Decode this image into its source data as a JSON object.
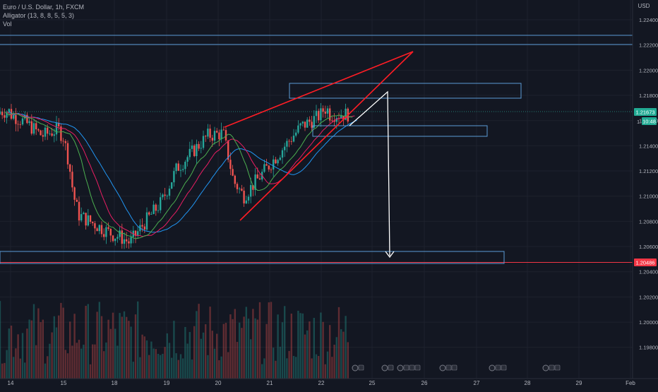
{
  "legend": {
    "symbol": "Euro / U.S. Dollar, 1h, FXCM",
    "indicator": "Alligator (13, 8, 8, 5, 5, 3)",
    "volume": "Vol"
  },
  "price_scale": {
    "currency": "USD",
    "current_price": "1.21673",
    "countdown": "10:48",
    "countdown_prefix": "1.",
    "support_price": "1.20486"
  },
  "colors": {
    "background": "#131722",
    "grid": "#1e222d",
    "bull": "#26a69a",
    "bear": "#ef5350",
    "jaw": "#2196f3",
    "teeth": "#e91e63",
    "lips": "#4caf50",
    "drawing_red": "#ff1d25",
    "box": "#5b9bd5",
    "arrow": "#ffffff"
  },
  "chart_data": {
    "type": "candlestick",
    "xlabel": "",
    "ylabel": "",
    "ylim": [
      1.1972,
      1.2262
    ],
    "price_ticks": [
      "1.22400",
      "1.22200",
      "1.22000",
      "1.21800",
      "1.21600",
      "1.21400",
      "1.21200",
      "1.21000",
      "1.20800",
      "1.20600",
      "1.20400",
      "1.20200",
      "1.20000",
      "1.19800"
    ],
    "time_ticks": [
      "14",
      "15",
      "18",
      "19",
      "20",
      "21",
      "22",
      "25",
      "26",
      "27",
      "28",
      "29",
      "Feb"
    ],
    "price_path_hint": [
      [
        14.0,
        1.2165
      ],
      [
        14.3,
        1.2158
      ],
      [
        14.6,
        1.2148
      ],
      [
        14.9,
        1.2153
      ],
      [
        15.3,
        1.2128
      ],
      [
        15.6,
        1.21
      ],
      [
        15.9,
        1.2085
      ],
      [
        18.1,
        1.2068
      ],
      [
        18.3,
        1.2063
      ],
      [
        18.6,
        1.208
      ],
      [
        18.9,
        1.2095
      ],
      [
        19.2,
        1.2122
      ],
      [
        19.5,
        1.2135
      ],
      [
        19.8,
        1.2148
      ],
      [
        20.1,
        1.215
      ],
      [
        20.3,
        1.2112
      ],
      [
        20.5,
        1.21
      ],
      [
        20.8,
        1.2115
      ],
      [
        21.0,
        1.2125
      ],
      [
        21.3,
        1.214
      ],
      [
        21.6,
        1.2155
      ],
      [
        21.9,
        1.2162
      ],
      [
        22.1,
        1.2168
      ],
      [
        22.3,
        1.217
      ],
      [
        22.45,
        1.21673
      ]
    ],
    "horizontal_levels": [
      1.2228,
      1.2221,
      1.20486
    ],
    "annotations": [
      "rising wedge",
      "target arrow to 1.2060 zone"
    ]
  }
}
